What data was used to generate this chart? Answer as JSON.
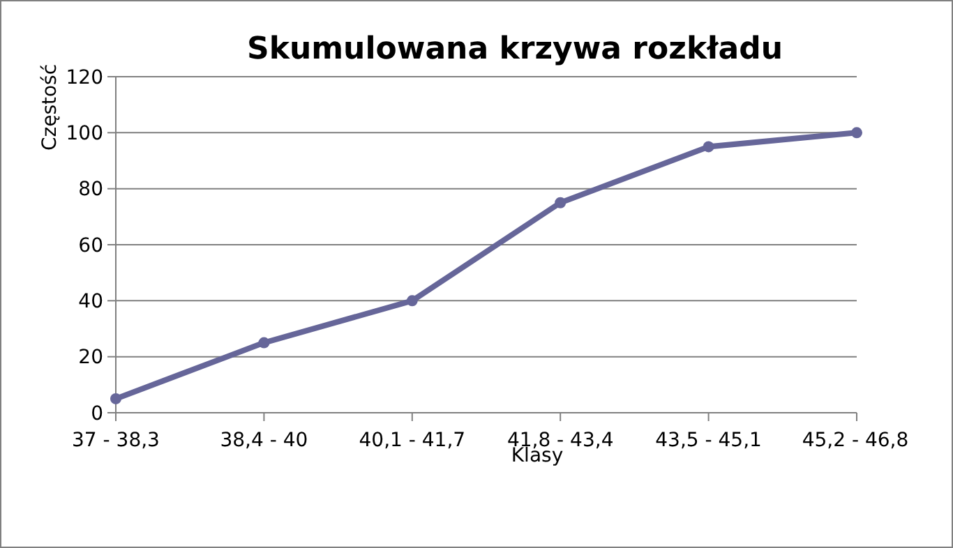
{
  "chart_data": {
    "type": "line",
    "title": "Skumulowana krzywa rozkładu",
    "xlabel": "Klasy",
    "ylabel": "Częstość",
    "categories": [
      "37 - 38,3",
      "38,4 - 40",
      "40,1 - 41,7",
      "41,8 - 43,4",
      "43,5 - 45,1",
      "45,2 - 46,8"
    ],
    "series": [
      {
        "color": "#666699",
        "values": [
          5,
          25,
          40,
          75,
          95,
          100
        ]
      }
    ],
    "ylim": [
      0,
      120
    ],
    "yticks": [
      0,
      20,
      40,
      60,
      80,
      100,
      120
    ],
    "grid": "y",
    "marker": "circle",
    "line_style": "solid"
  }
}
